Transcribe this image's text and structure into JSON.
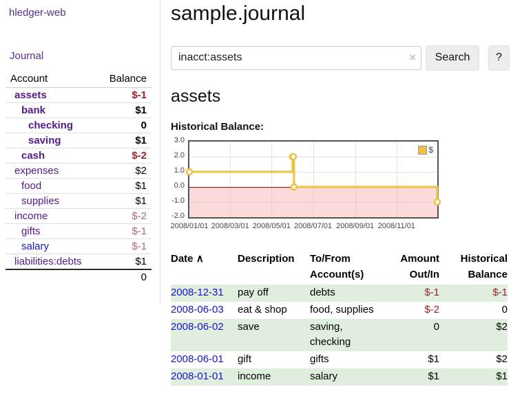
{
  "sidebar": {
    "brand": "hledger-web",
    "nav_journal": "Journal",
    "table": {
      "header_account": "Account",
      "header_balance": "Balance",
      "rows": [
        {
          "name": "assets",
          "balance": "$-1"
        },
        {
          "name": "bank",
          "balance": "$1"
        },
        {
          "name": "checking",
          "balance": "0"
        },
        {
          "name": "saving",
          "balance": "$1"
        },
        {
          "name": "cash",
          "balance": "$-2"
        },
        {
          "name": "expenses",
          "balance": "$2"
        },
        {
          "name": "food",
          "balance": "$1"
        },
        {
          "name": "supplies",
          "balance": "$1"
        },
        {
          "name": "income",
          "balance": "$-2"
        },
        {
          "name": "gifts",
          "balance": "$-1"
        },
        {
          "name": "salary",
          "balance": "$-1"
        },
        {
          "name": "liabilities:debts",
          "balance": "$1"
        }
      ],
      "total": "0"
    }
  },
  "main": {
    "title": "sample.journal",
    "search": {
      "value": "inacct:assets",
      "clear": "×",
      "button": "Search",
      "help": "?"
    },
    "account_heading": "assets",
    "chart_heading": "Historical Balance:"
  },
  "chart_data": {
    "type": "line",
    "step": true,
    "title": "Historical Balance",
    "series": [
      {
        "name": "$",
        "color": "#edc240",
        "points": [
          {
            "date": "2008-01-01",
            "value": 1
          },
          {
            "date": "2008-06-01",
            "value": 2
          },
          {
            "date": "2008-06-02",
            "value": 2
          },
          {
            "date": "2008-06-03",
            "value": 0
          },
          {
            "date": "2008-12-31",
            "value": -1
          }
        ]
      }
    ],
    "ylim": [
      -2,
      3
    ],
    "yticks": [
      3,
      2,
      1,
      0,
      -1,
      -2
    ],
    "ytick_labels": [
      "3.0",
      "2.0",
      "1.0",
      "0.0",
      "-1.0",
      "-2.0"
    ],
    "xtick_labels": [
      "2008/01/01",
      "2008/03/01",
      "2008/05/01",
      "2008/07/01",
      "2008/09/01",
      "2008/11/01"
    ],
    "legend": {
      "label": "$",
      "position": "top-right"
    },
    "grid": true,
    "negative_fill": "#fbdcdc",
    "zero_line_color": "#a40000"
  },
  "register": {
    "headers": {
      "date": "Date",
      "sort_icon": "∧",
      "description": "Description",
      "account": "To/From Account(s)",
      "amount": "Amount Out/In",
      "balance": "Historical Balance"
    },
    "rows": [
      {
        "date": "2008-12-31",
        "description": "pay off",
        "accounts": "debts",
        "amount": "$-1",
        "balance": "$-1"
      },
      {
        "date": "2008-06-03",
        "description": "eat & shop",
        "accounts": "food, supplies",
        "amount": "$-2",
        "balance": "0"
      },
      {
        "date": "2008-06-02",
        "description": "save",
        "accounts": "saving,\nchecking",
        "amount": "0",
        "balance": "$2"
      },
      {
        "date": "2008-06-01",
        "description": "gift",
        "accounts": "gifts",
        "amount": "$1",
        "balance": "$2"
      },
      {
        "date": "2008-01-01",
        "description": "income",
        "accounts": "salary",
        "amount": "$1",
        "balance": "$1"
      }
    ]
  },
  "colors": {
    "link_purple": "#551a8b",
    "link_blue": "#1414cc",
    "negative_strong": "#9d1f27",
    "negative_muted": "#b36a6e",
    "row_stripe_green": "#e0eedd",
    "chart_line": "#edc240",
    "chart_negative_region": "#fbdcdc",
    "chart_zero_line": "#a40000"
  }
}
